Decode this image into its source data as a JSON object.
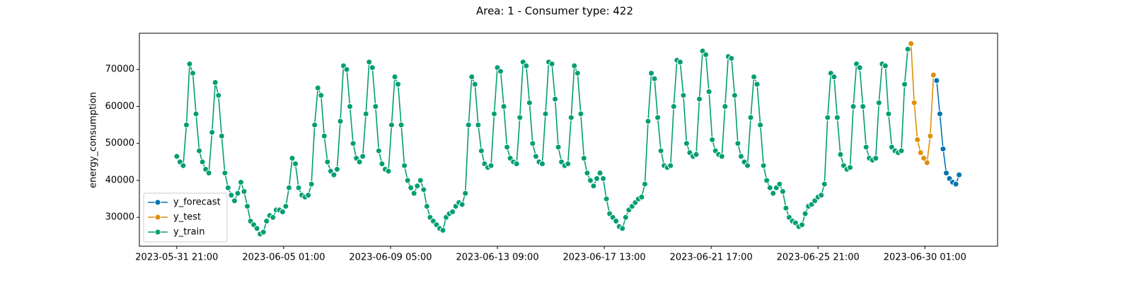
{
  "chart_data": {
    "type": "line",
    "title": "Area: 1 - Consumer type: 422",
    "y_label": "energy_consumption",
    "xlim": [
      "2023-05-30 10:00",
      "2023-07-02 21:00"
    ],
    "xticks": [
      "2023-05-31 21:00",
      "2023-06-05 01:00",
      "2023-06-09 05:00",
      "2023-06-13 09:00",
      "2023-06-17 13:00",
      "2023-06-21 17:00",
      "2023-06-25 21:00",
      "2023-06-30 01:00"
    ],
    "ylim": [
      22200,
      79800
    ],
    "yticks": [
      30000,
      40000,
      50000,
      60000,
      70000
    ],
    "grid": false,
    "legend": "lower left",
    "markers": true,
    "series": [
      {
        "name": "y_forecast",
        "color": "#0173b2",
        "x": [
          "2023-06-30 12:00",
          "2023-06-30 15:00",
          "2023-06-30 18:00",
          "2023-06-30 21:00",
          "2023-07-01 00:00",
          "2023-07-01 03:00",
          "2023-07-01 06:00",
          "2023-07-01 09:00"
        ],
        "values": [
          67000,
          58000,
          48500,
          42000,
          40500,
          39500,
          39000,
          41500
        ]
      },
      {
        "name": "y_test",
        "color": "#de8f05",
        "x": [
          "2023-06-29 12:00",
          "2023-06-29 15:00",
          "2023-06-29 18:00",
          "2023-06-29 21:00",
          "2023-06-30 00:00",
          "2023-06-30 03:00",
          "2023-06-30 06:00",
          "2023-06-30 09:00"
        ],
        "values": [
          77000,
          61000,
          51000,
          47500,
          46000,
          44800,
          52000,
          68500
        ]
      },
      {
        "name": "y_train",
        "color": "#029e73",
        "x": [
          "2023-05-31 21:00",
          "2023-06-01 00:00",
          "2023-06-01 03:00",
          "2023-06-01 06:00",
          "2023-06-01 09:00",
          "2023-06-01 12:00",
          "2023-06-01 15:00",
          "2023-06-01 18:00",
          "2023-06-01 21:00",
          "2023-06-02 00:00",
          "2023-06-02 03:00",
          "2023-06-02 06:00",
          "2023-06-02 09:00",
          "2023-06-02 12:00",
          "2023-06-02 15:00",
          "2023-06-02 18:00",
          "2023-06-02 21:00",
          "2023-06-03 00:00",
          "2023-06-03 03:00",
          "2023-06-03 06:00",
          "2023-06-03 09:00",
          "2023-06-03 12:00",
          "2023-06-03 15:00",
          "2023-06-03 18:00",
          "2023-06-03 21:00",
          "2023-06-04 00:00",
          "2023-06-04 03:00",
          "2023-06-04 06:00",
          "2023-06-04 09:00",
          "2023-06-04 12:00",
          "2023-06-04 15:00",
          "2023-06-04 18:00",
          "2023-06-04 21:00",
          "2023-06-05 00:00",
          "2023-06-05 03:00",
          "2023-06-05 06:00",
          "2023-06-05 09:00",
          "2023-06-05 12:00",
          "2023-06-05 15:00",
          "2023-06-05 18:00",
          "2023-06-05 21:00",
          "2023-06-06 00:00",
          "2023-06-06 03:00",
          "2023-06-06 06:00",
          "2023-06-06 09:00",
          "2023-06-06 12:00",
          "2023-06-06 15:00",
          "2023-06-06 18:00",
          "2023-06-06 21:00",
          "2023-06-07 00:00",
          "2023-06-07 03:00",
          "2023-06-07 06:00",
          "2023-06-07 09:00",
          "2023-06-07 12:00",
          "2023-06-07 15:00",
          "2023-06-07 18:00",
          "2023-06-07 21:00",
          "2023-06-08 00:00",
          "2023-06-08 03:00",
          "2023-06-08 06:00",
          "2023-06-08 09:00",
          "2023-06-08 12:00",
          "2023-06-08 15:00",
          "2023-06-08 18:00",
          "2023-06-08 21:00",
          "2023-06-09 00:00",
          "2023-06-09 03:00",
          "2023-06-09 06:00",
          "2023-06-09 09:00",
          "2023-06-09 12:00",
          "2023-06-09 15:00",
          "2023-06-09 18:00",
          "2023-06-09 21:00",
          "2023-06-10 00:00",
          "2023-06-10 03:00",
          "2023-06-10 06:00",
          "2023-06-10 09:00",
          "2023-06-10 12:00",
          "2023-06-10 15:00",
          "2023-06-10 18:00",
          "2023-06-10 21:00",
          "2023-06-11 00:00",
          "2023-06-11 03:00",
          "2023-06-11 06:00",
          "2023-06-11 09:00",
          "2023-06-11 12:00",
          "2023-06-11 15:00",
          "2023-06-11 18:00",
          "2023-06-11 21:00",
          "2023-06-12 00:00",
          "2023-06-12 03:00",
          "2023-06-12 06:00",
          "2023-06-12 09:00",
          "2023-06-12 12:00",
          "2023-06-12 15:00",
          "2023-06-12 18:00",
          "2023-06-12 21:00",
          "2023-06-13 00:00",
          "2023-06-13 03:00",
          "2023-06-13 06:00",
          "2023-06-13 09:00",
          "2023-06-13 12:00",
          "2023-06-13 15:00",
          "2023-06-13 18:00",
          "2023-06-13 21:00",
          "2023-06-14 00:00",
          "2023-06-14 03:00",
          "2023-06-14 06:00",
          "2023-06-14 09:00",
          "2023-06-14 12:00",
          "2023-06-14 15:00",
          "2023-06-14 18:00",
          "2023-06-14 21:00",
          "2023-06-15 00:00",
          "2023-06-15 03:00",
          "2023-06-15 06:00",
          "2023-06-15 09:00",
          "2023-06-15 12:00",
          "2023-06-15 15:00",
          "2023-06-15 18:00",
          "2023-06-15 21:00",
          "2023-06-16 00:00",
          "2023-06-16 03:00",
          "2023-06-16 06:00",
          "2023-06-16 09:00",
          "2023-06-16 12:00",
          "2023-06-16 15:00",
          "2023-06-16 18:00",
          "2023-06-16 21:00",
          "2023-06-17 00:00",
          "2023-06-17 03:00",
          "2023-06-17 06:00",
          "2023-06-17 09:00",
          "2023-06-17 12:00",
          "2023-06-17 15:00",
          "2023-06-17 18:00",
          "2023-06-17 21:00",
          "2023-06-18 00:00",
          "2023-06-18 03:00",
          "2023-06-18 06:00",
          "2023-06-18 09:00",
          "2023-06-18 12:00",
          "2023-06-18 15:00",
          "2023-06-18 18:00",
          "2023-06-18 21:00",
          "2023-06-19 00:00",
          "2023-06-19 03:00",
          "2023-06-19 06:00",
          "2023-06-19 09:00",
          "2023-06-19 12:00",
          "2023-06-19 15:00",
          "2023-06-19 18:00",
          "2023-06-19 21:00",
          "2023-06-20 00:00",
          "2023-06-20 03:00",
          "2023-06-20 06:00",
          "2023-06-20 09:00",
          "2023-06-20 12:00",
          "2023-06-20 15:00",
          "2023-06-20 18:00",
          "2023-06-20 21:00",
          "2023-06-21 00:00",
          "2023-06-21 03:00",
          "2023-06-21 06:00",
          "2023-06-21 09:00",
          "2023-06-21 12:00",
          "2023-06-21 15:00",
          "2023-06-21 18:00",
          "2023-06-21 21:00",
          "2023-06-22 00:00",
          "2023-06-22 03:00",
          "2023-06-22 06:00",
          "2023-06-22 09:00",
          "2023-06-22 12:00",
          "2023-06-22 15:00",
          "2023-06-22 18:00",
          "2023-06-22 21:00",
          "2023-06-23 00:00",
          "2023-06-23 03:00",
          "2023-06-23 06:00",
          "2023-06-23 09:00",
          "2023-06-23 12:00",
          "2023-06-23 15:00",
          "2023-06-23 18:00",
          "2023-06-23 21:00",
          "2023-06-24 00:00",
          "2023-06-24 03:00",
          "2023-06-24 06:00",
          "2023-06-24 09:00",
          "2023-06-24 12:00",
          "2023-06-24 15:00",
          "2023-06-24 18:00",
          "2023-06-24 21:00",
          "2023-06-25 00:00",
          "2023-06-25 03:00",
          "2023-06-25 06:00",
          "2023-06-25 09:00",
          "2023-06-25 12:00",
          "2023-06-25 15:00",
          "2023-06-25 18:00",
          "2023-06-25 21:00",
          "2023-06-26 00:00",
          "2023-06-26 03:00",
          "2023-06-26 06:00",
          "2023-06-26 09:00",
          "2023-06-26 12:00",
          "2023-06-26 15:00",
          "2023-06-26 18:00",
          "2023-06-26 21:00",
          "2023-06-27 00:00",
          "2023-06-27 03:00",
          "2023-06-27 06:00",
          "2023-06-27 09:00",
          "2023-06-27 12:00",
          "2023-06-27 15:00",
          "2023-06-27 18:00",
          "2023-06-27 21:00",
          "2023-06-28 00:00",
          "2023-06-28 03:00",
          "2023-06-28 06:00",
          "2023-06-28 09:00",
          "2023-06-28 12:00",
          "2023-06-28 15:00",
          "2023-06-28 18:00",
          "2023-06-28 21:00",
          "2023-06-29 00:00",
          "2023-06-29 03:00",
          "2023-06-29 06:00",
          "2023-06-29 09:00"
        ],
        "values": [
          46500,
          45000,
          44000,
          55000,
          71500,
          69000,
          58000,
          48000,
          45000,
          43000,
          42000,
          53000,
          66500,
          63000,
          52000,
          42000,
          38000,
          36000,
          34500,
          36500,
          39500,
          37000,
          33000,
          29000,
          28000,
          27000,
          25500,
          26000,
          29000,
          30500,
          30000,
          32000,
          32000,
          31500,
          33000,
          38000,
          46000,
          44500,
          38000,
          36000,
          35500,
          36000,
          39000,
          55000,
          65000,
          63000,
          52000,
          45000,
          42500,
          41500,
          43000,
          56000,
          71000,
          70000,
          60000,
          50000,
          46000,
          45000,
          46500,
          58000,
          72000,
          70500,
          60000,
          48000,
          44500,
          43000,
          42500,
          55000,
          68000,
          66000,
          55000,
          44000,
          40000,
          38000,
          36500,
          38500,
          40000,
          37500,
          33000,
          30000,
          29000,
          28000,
          27000,
          26500,
          30000,
          31000,
          31500,
          33000,
          34000,
          33500,
          36500,
          55000,
          68000,
          66000,
          55000,
          48000,
          44500,
          43500,
          44000,
          58000,
          70500,
          69500,
          60000,
          49000,
          46000,
          45000,
          44500,
          57000,
          72000,
          71000,
          61000,
          50000,
          46500,
          45000,
          44500,
          58000,
          72000,
          71500,
          62000,
          49000,
          45000,
          44000,
          44500,
          57000,
          71000,
          69000,
          58000,
          46000,
          42000,
          40000,
          38500,
          40500,
          42000,
          40500,
          35000,
          31000,
          30000,
          29000,
          27500,
          27000,
          30000,
          32000,
          33000,
          34000,
          35000,
          35500,
          39000,
          56000,
          69000,
          67500,
          57000,
          48000,
          44000,
          43500,
          44000,
          60000,
          72500,
          72000,
          63000,
          50000,
          47500,
          46500,
          47000,
          62000,
          75000,
          74000,
          64000,
          51000,
          48000,
          47000,
          46500,
          60000,
          73500,
          73000,
          63000,
          50000,
          46500,
          45000,
          44000,
          57000,
          68000,
          66000,
          55000,
          44000,
          40000,
          38000,
          36500,
          38000,
          39000,
          37000,
          32500,
          30000,
          29000,
          28500,
          27500,
          28000,
          31000,
          33000,
          33500,
          34500,
          35500,
          36000,
          39000,
          57000,
          69000,
          68000,
          57000,
          47000,
          44000,
          43000,
          43500,
          60000,
          71500,
          70500,
          60000,
          49000,
          46000,
          45500,
          46000,
          61000,
          71500,
          71000,
          58000,
          49000,
          48000,
          47500,
          48000,
          66000,
          75500
        ]
      }
    ]
  }
}
